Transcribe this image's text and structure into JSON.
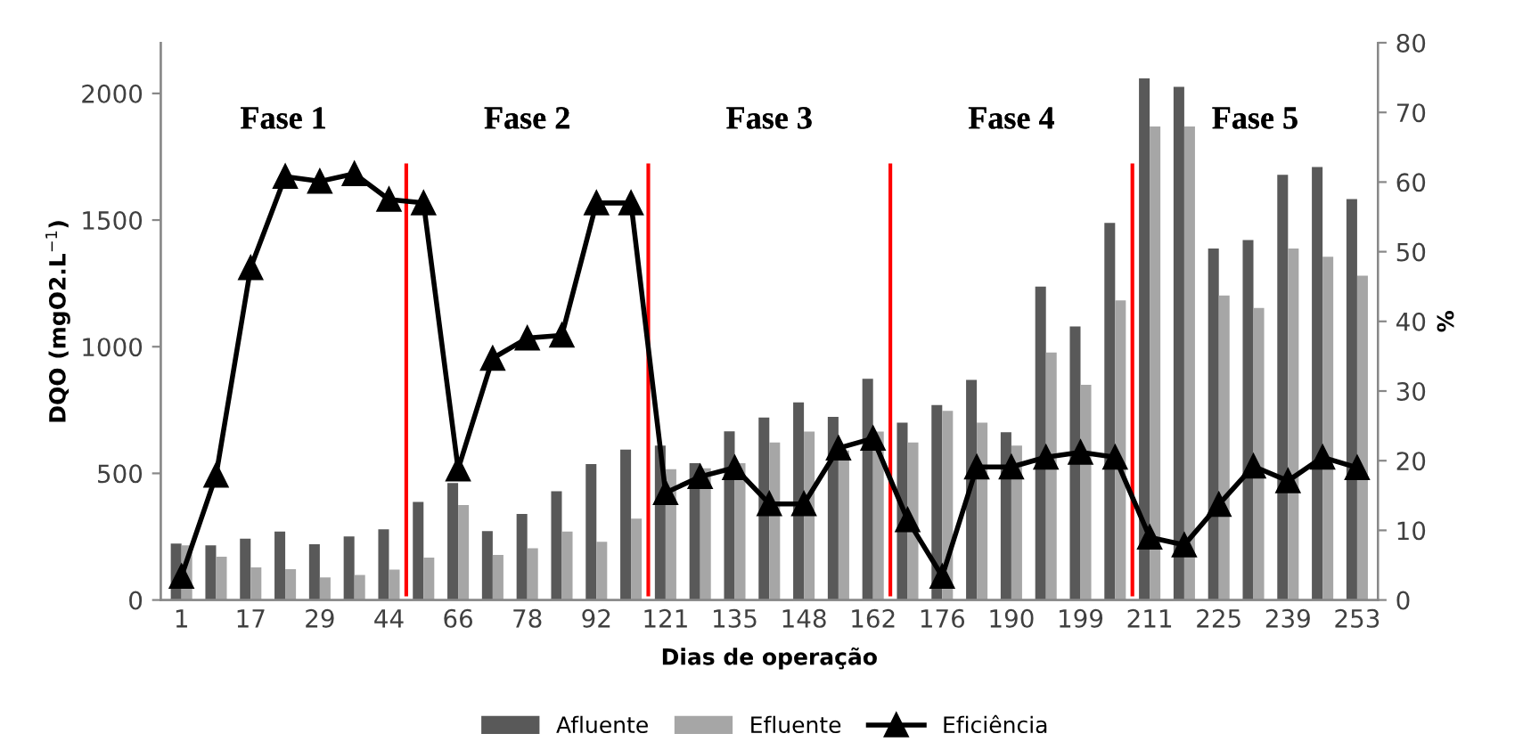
{
  "chart_data": {
    "type": "bar",
    "xlabel": "Dias de operação",
    "ylabel": "DQO (mgO2.L$^{−1}$)",
    "y2label": "%",
    "categories": [
      "1",
      null,
      "17",
      null,
      "29",
      null,
      "44",
      null,
      "66",
      null,
      "78",
      null,
      "92",
      null,
      "121",
      null,
      "135",
      null,
      "148",
      null,
      "162",
      null,
      "176",
      null,
      "190",
      null,
      "199",
      null,
      "211",
      null,
      "225",
      null,
      "239",
      null,
      "253"
    ],
    "series": [
      {
        "name": "Afluente",
        "color": "#595959",
        "values": [
          223,
          216,
          242,
          270,
          220,
          251,
          279,
          387,
          462,
          272,
          340,
          429,
          537,
          594,
          610,
          540,
          666,
          720,
          780,
          723,
          873,
          700,
          770,
          869,
          662,
          1237,
          1080,
          1489,
          2059,
          2026,
          1388,
          1421,
          1679,
          1709,
          1583
        ]
      },
      {
        "name": "Efluente",
        "color": "#a6a6a6",
        "values": [
          216,
          171,
          129,
          122,
          89,
          99,
          120,
          167,
          375,
          178,
          204,
          270,
          230,
          321,
          516,
          520,
          540,
          622,
          665,
          590,
          665,
          622,
          747,
          700,
          610,
          977,
          850,
          1183,
          1869,
          1869,
          1202,
          1153,
          1388,
          1355,
          1280
        ]
      },
      {
        "name": "Eficiência",
        "type": "line",
        "axis": "y2",
        "color": "#000000",
        "marker": "triangle",
        "line_style": "solid",
        "values": [
          3.4,
          17.9,
          47.7,
          60.8,
          60.1,
          61.2,
          57.5,
          57.0,
          18.8,
          34.7,
          37.6,
          38.0,
          57.0,
          57.0,
          15.4,
          17.7,
          19.0,
          13.8,
          13.8,
          21.8,
          23.2,
          11.5,
          3.4,
          19.1,
          19.1,
          20.5,
          21.2,
          20.5,
          9.0,
          7.9,
          13.7,
          19.2,
          17.1,
          20.5,
          19.0
        ]
      }
    ],
    "ylim": [
      0,
      2200
    ],
    "yticks": [
      0,
      500,
      1000,
      1500,
      2000
    ],
    "y2lim": [
      0,
      80
    ],
    "y2ticks": [
      0,
      10,
      20,
      30,
      40,
      50,
      60,
      70,
      80
    ],
    "annotations": [
      "Fase 1",
      "Fase 2",
      "Fase 3",
      "Fase 4",
      "Fase 5"
    ],
    "grid": false,
    "legend": "bottom"
  }
}
